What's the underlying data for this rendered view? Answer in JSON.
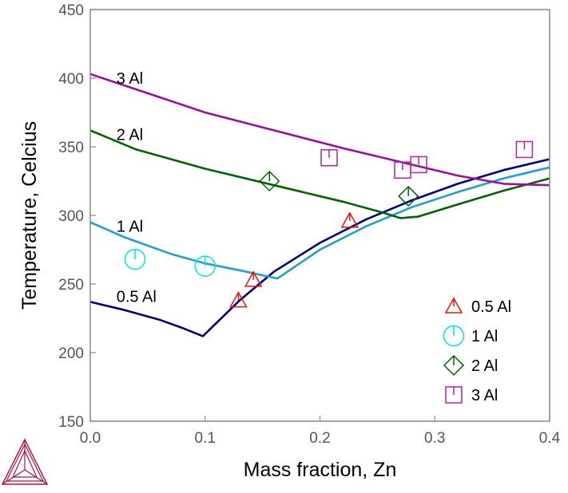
{
  "chart_data": {
    "type": "line",
    "xlabel": "Mass fraction, Zn",
    "ylabel": "Temperature, Celcius",
    "xlim": [
      0.0,
      0.4
    ],
    "ylim": [
      150,
      450
    ],
    "x_ticks": [
      0.0,
      0.1,
      0.2,
      0.3,
      0.4
    ],
    "x_tick_labels": [
      "0.0",
      "0.1",
      "0.2",
      "0.3",
      "0.4"
    ],
    "y_ticks": [
      150,
      200,
      250,
      300,
      350,
      400,
      450
    ],
    "y_tick_labels": [
      "150",
      "200",
      "250",
      "300",
      "350",
      "400",
      "450"
    ],
    "grid": false,
    "legend_position": "bottom-right",
    "series": [
      {
        "name": "0.5 Al",
        "color": "#000080",
        "label": "0.5 Al",
        "label_at": [
          0.02,
          237
        ],
        "points": [
          [
            0.0,
            237
          ],
          [
            0.03,
            231
          ],
          [
            0.06,
            224
          ],
          [
            0.08,
            218
          ],
          [
            0.098,
            212
          ],
          [
            0.13,
            238
          ],
          [
            0.16,
            259
          ],
          [
            0.2,
            280
          ],
          [
            0.24,
            297
          ],
          [
            0.28,
            311
          ],
          [
            0.32,
            323
          ],
          [
            0.36,
            333
          ],
          [
            0.4,
            341
          ]
        ]
      },
      {
        "name": "1 Al",
        "color": "#1e9fd8",
        "label": "1 Al",
        "label_at": [
          0.02,
          288
        ],
        "points": [
          [
            0.0,
            295
          ],
          [
            0.03,
            284
          ],
          [
            0.07,
            272
          ],
          [
            0.1,
            265
          ],
          [
            0.13,
            260
          ],
          [
            0.163,
            254
          ],
          [
            0.2,
            275
          ],
          [
            0.24,
            292
          ],
          [
            0.28,
            306
          ],
          [
            0.32,
            317
          ],
          [
            0.36,
            327
          ],
          [
            0.4,
            335
          ]
        ]
      },
      {
        "name": "2 Al",
        "color": "#006400",
        "label": "2 Al",
        "label_at": [
          0.02,
          355
        ],
        "points": [
          [
            0.0,
            362
          ],
          [
            0.04,
            348
          ],
          [
            0.1,
            334
          ],
          [
            0.16,
            322
          ],
          [
            0.22,
            310
          ],
          [
            0.255,
            302
          ],
          [
            0.27,
            298
          ],
          [
            0.285,
            299
          ],
          [
            0.32,
            308
          ],
          [
            0.36,
            318
          ],
          [
            0.4,
            327
          ]
        ]
      },
      {
        "name": "3 Al",
        "color": "#9b0f9b",
        "label": "3 Al",
        "label_at": [
          0.02,
          396
        ],
        "points": [
          [
            0.0,
            403
          ],
          [
            0.05,
            389
          ],
          [
            0.1,
            375
          ],
          [
            0.16,
            362
          ],
          [
            0.22,
            349
          ],
          [
            0.28,
            337
          ],
          [
            0.32,
            329
          ],
          [
            0.36,
            323
          ],
          [
            0.4,
            322
          ]
        ]
      }
    ],
    "markers": [
      {
        "name": "0.5 Al",
        "shape": "triangle",
        "color": "#ee1111",
        "points": [
          [
            0.129,
            238
          ],
          [
            0.142,
            253
          ],
          [
            0.226,
            296
          ]
        ]
      },
      {
        "name": "1 Al",
        "shape": "circle",
        "color": "#00e5e5",
        "points": [
          [
            0.039,
            268
          ],
          [
            0.1,
            263
          ]
        ]
      },
      {
        "name": "2 Al",
        "shape": "diamond",
        "color": "#006400",
        "points": [
          [
            0.156,
            325
          ],
          [
            0.277,
            314
          ]
        ]
      },
      {
        "name": "3 Al",
        "shape": "square",
        "color": "#b221b2",
        "points": [
          [
            0.208,
            342
          ],
          [
            0.272,
            333
          ],
          [
            0.286,
            337
          ],
          [
            0.378,
            348
          ]
        ]
      }
    ]
  }
}
